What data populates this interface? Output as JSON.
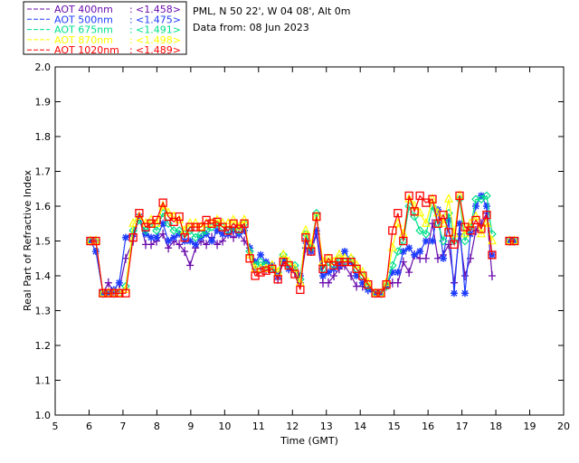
{
  "chart_data": {
    "type": "line",
    "title_lines": [
      "PML, N 50 22', W 04 08', Alt 0m",
      "Data from: 08 Jun 2023"
    ],
    "xlabel": "Time (GMT)",
    "ylabel": "Real Part of Refractive Index",
    "xlim": [
      5,
      20
    ],
    "ylim": [
      1.0,
      2.0
    ],
    "xticks": [
      "5",
      "6",
      "7",
      "8",
      "9",
      "10",
      "11",
      "12",
      "13",
      "14",
      "15",
      "16",
      "17",
      "18",
      "19",
      "20"
    ],
    "yticks": [
      "1.0",
      "1.1",
      "1.2",
      "1.3",
      "1.4",
      "1.5",
      "1.6",
      "1.7",
      "1.8",
      "1.9",
      "2.0"
    ],
    "legend_position": "top-left, outside",
    "x": [
      6.04,
      6.2,
      6.41,
      6.57,
      6.73,
      6.89,
      7.08,
      7.3,
      7.48,
      7.67,
      7.83,
      7.99,
      8.18,
      8.34,
      8.5,
      8.66,
      8.82,
      8.98,
      9.14,
      9.3,
      9.46,
      9.62,
      9.78,
      9.94,
      10.1,
      10.26,
      10.42,
      10.58,
      10.74,
      10.9,
      11.06,
      11.22,
      11.4,
      11.57,
      11.73,
      11.89,
      12.07,
      12.23,
      12.39,
      12.55,
      12.71,
      12.9,
      13.06,
      13.22,
      13.38,
      13.54,
      13.73,
      13.89,
      14.07,
      14.23,
      14.45,
      14.61,
      14.77,
      14.95,
      15.11,
      15.27,
      15.44,
      15.6,
      15.76,
      15.94,
      16.13,
      16.29,
      16.45,
      16.61,
      16.77,
      16.93,
      17.09,
      17.25,
      17.41,
      17.57,
      17.73,
      17.89,
      18.4,
      18.55
    ],
    "series": [
      {
        "name": "AOT  400nm",
        "mean": "<1.458>",
        "color": "#6a0dad",
        "marker": "plus",
        "values": [
          1.5,
          1.5,
          1.35,
          1.38,
          1.35,
          1.36,
          1.45,
          1.5,
          1.57,
          1.49,
          1.49,
          1.5,
          1.52,
          1.48,
          1.5,
          1.49,
          1.47,
          1.43,
          1.48,
          1.5,
          1.49,
          1.51,
          1.49,
          1.5,
          1.52,
          1.51,
          1.52,
          1.5,
          1.48,
          1.42,
          1.42,
          1.42,
          1.43,
          1.39,
          1.44,
          1.42,
          1.41,
          1.38,
          1.48,
          1.47,
          1.52,
          1.38,
          1.38,
          1.4,
          1.42,
          1.43,
          1.4,
          1.37,
          1.37,
          1.36,
          1.35,
          1.35,
          1.37,
          1.38,
          1.38,
          1.44,
          1.41,
          1.46,
          1.45,
          1.45,
          1.55,
          1.45,
          1.46,
          1.49,
          1.38,
          1.52,
          1.4,
          1.45,
          1.53,
          1.55,
          1.58,
          1.4,
          1.5,
          1.5
        ]
      },
      {
        "name": "AOT  500nm",
        "mean": "<1.475>",
        "color": "#1e3cff",
        "marker": "star",
        "values": [
          1.5,
          1.47,
          1.35,
          1.35,
          1.36,
          1.38,
          1.51,
          1.52,
          1.57,
          1.52,
          1.51,
          1.51,
          1.55,
          1.5,
          1.51,
          1.52,
          1.5,
          1.5,
          1.49,
          1.51,
          1.52,
          1.5,
          1.53,
          1.52,
          1.52,
          1.53,
          1.52,
          1.53,
          1.48,
          1.44,
          1.46,
          1.44,
          1.43,
          1.4,
          1.45,
          1.42,
          1.42,
          1.4,
          1.5,
          1.47,
          1.53,
          1.4,
          1.41,
          1.42,
          1.43,
          1.47,
          1.44,
          1.4,
          1.38,
          1.36,
          1.35,
          1.35,
          1.37,
          1.41,
          1.41,
          1.47,
          1.48,
          1.46,
          1.47,
          1.5,
          1.5,
          1.59,
          1.45,
          1.56,
          1.35,
          1.55,
          1.35,
          1.52,
          1.6,
          1.63,
          1.6,
          1.46,
          1.5,
          1.5
        ]
      },
      {
        "name": "AOT  675nm",
        "mean": "<1.491>",
        "color": "#00e08a",
        "marker": "diamond",
        "values": [
          1.5,
          1.5,
          1.35,
          1.35,
          1.35,
          1.35,
          1.37,
          1.53,
          1.56,
          1.53,
          1.55,
          1.53,
          1.58,
          1.55,
          1.53,
          1.53,
          1.52,
          1.53,
          1.51,
          1.52,
          1.53,
          1.54,
          1.55,
          1.54,
          1.53,
          1.54,
          1.53,
          1.55,
          1.47,
          1.43,
          1.44,
          1.43,
          1.42,
          1.41,
          1.46,
          1.43,
          1.43,
          1.39,
          1.52,
          1.48,
          1.58,
          1.42,
          1.44,
          1.43,
          1.45,
          1.44,
          1.45,
          1.42,
          1.4,
          1.37,
          1.35,
          1.35,
          1.37,
          1.43,
          1.47,
          1.5,
          1.6,
          1.57,
          1.53,
          1.52,
          1.6,
          1.55,
          1.5,
          1.58,
          1.5,
          1.62,
          1.5,
          1.54,
          1.62,
          1.62,
          1.63,
          1.52,
          1.5,
          1.5
        ]
      },
      {
        "name": "AOT  870nm",
        "mean": "<1.498>",
        "color": "#ffff00",
        "marker": "triangle",
        "values": [
          1.5,
          1.5,
          1.35,
          1.35,
          1.35,
          1.35,
          1.36,
          1.55,
          1.57,
          1.55,
          1.56,
          1.55,
          1.6,
          1.58,
          1.57,
          1.56,
          1.53,
          1.55,
          1.55,
          1.54,
          1.55,
          1.55,
          1.56,
          1.55,
          1.55,
          1.56,
          1.54,
          1.56,
          1.46,
          1.42,
          1.42,
          1.42,
          1.43,
          1.41,
          1.46,
          1.44,
          1.42,
          1.38,
          1.53,
          1.49,
          1.57,
          1.44,
          1.45,
          1.44,
          1.46,
          1.45,
          1.45,
          1.43,
          1.41,
          1.38,
          1.35,
          1.35,
          1.38,
          1.48,
          1.55,
          1.52,
          1.62,
          1.6,
          1.58,
          1.55,
          1.62,
          1.58,
          1.55,
          1.62,
          1.52,
          1.63,
          1.52,
          1.55,
          1.57,
          1.52,
          1.55,
          1.5,
          1.5,
          1.5
        ]
      },
      {
        "name": "AOT 1020nm",
        "mean": "<1.489>",
        "color": "#ff0000",
        "marker": "square",
        "values": [
          1.5,
          1.5,
          1.35,
          1.35,
          1.35,
          1.35,
          1.35,
          1.51,
          1.58,
          1.54,
          1.55,
          1.56,
          1.61,
          1.57,
          1.555,
          1.57,
          1.51,
          1.54,
          1.54,
          1.54,
          1.56,
          1.55,
          1.555,
          1.54,
          1.53,
          1.55,
          1.535,
          1.55,
          1.45,
          1.4,
          1.41,
          1.415,
          1.42,
          1.39,
          1.44,
          1.43,
          1.405,
          1.36,
          1.51,
          1.47,
          1.57,
          1.42,
          1.45,
          1.43,
          1.44,
          1.44,
          1.44,
          1.42,
          1.4,
          1.375,
          1.35,
          1.35,
          1.375,
          1.53,
          1.58,
          1.5,
          1.63,
          1.585,
          1.63,
          1.61,
          1.62,
          1.55,
          1.575,
          1.525,
          1.49,
          1.63,
          1.54,
          1.53,
          1.56,
          1.535,
          1.575,
          1.46,
          1.5,
          1.5
        ]
      }
    ]
  }
}
